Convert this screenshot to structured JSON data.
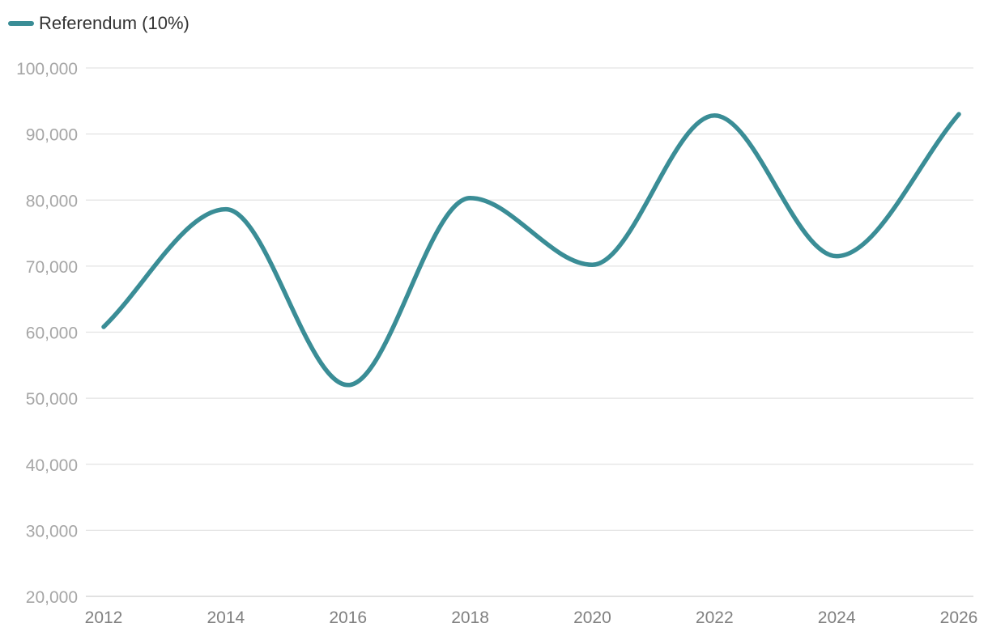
{
  "chart_data": {
    "type": "line",
    "smooth": true,
    "title": "",
    "xlabel": "",
    "ylabel": "",
    "ylim": [
      20000,
      100000
    ],
    "xlim": [
      2012,
      2026
    ],
    "grid": true,
    "legend_position": "top-left",
    "yticks": [
      20000,
      30000,
      40000,
      50000,
      60000,
      70000,
      80000,
      90000,
      100000
    ],
    "ytick_labels": [
      "20,000",
      "30,000",
      "40,000",
      "50,000",
      "60,000",
      "70,000",
      "80,000",
      "90,000",
      "100,000"
    ],
    "xticks": [
      2012,
      2014,
      2016,
      2018,
      2020,
      2022,
      2024,
      2026
    ],
    "xtick_labels": [
      "2012",
      "2014",
      "2016",
      "2018",
      "2020",
      "2022",
      "2024",
      "2026"
    ],
    "series": [
      {
        "name": "Referendum (10%)",
        "color": "#3a8d96",
        "x": [
          2012,
          2014,
          2016,
          2018,
          2020,
          2022,
          2024,
          2026
        ],
        "y": [
          60800,
          78600,
          52000,
          80300,
          70200,
          92800,
          71500,
          93000
        ]
      }
    ]
  }
}
